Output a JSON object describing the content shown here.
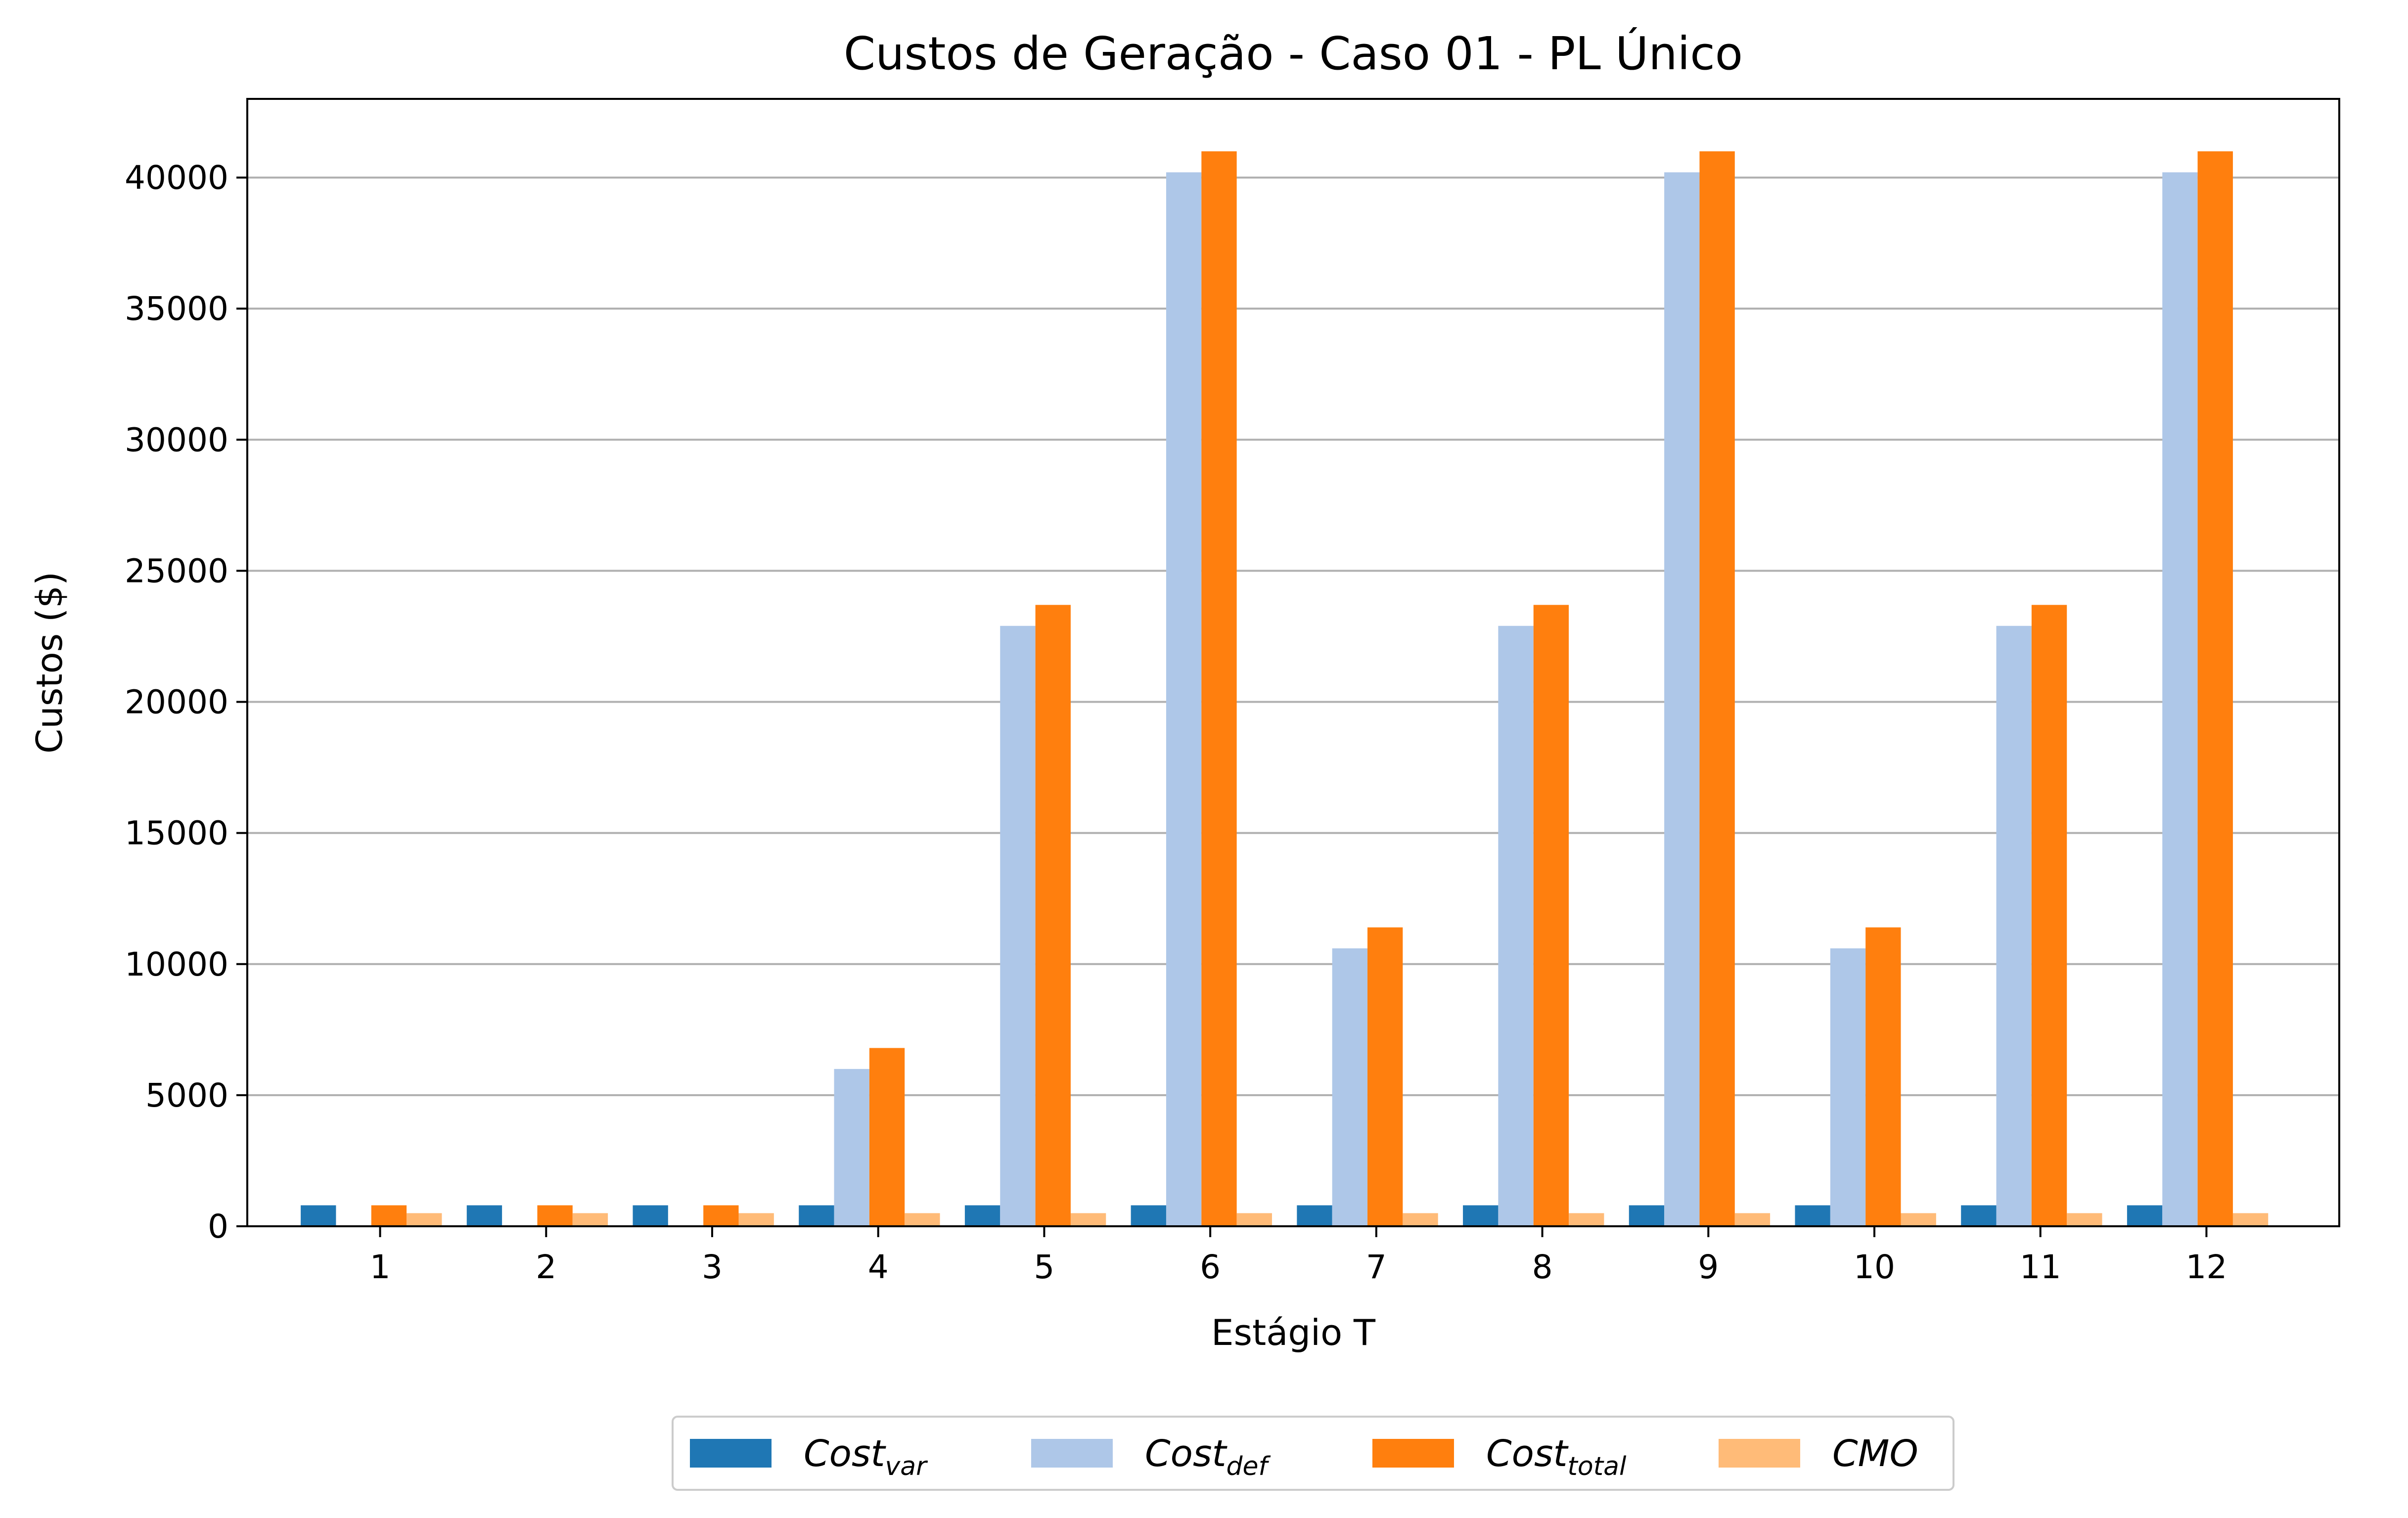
{
  "chart_data": {
    "type": "bar",
    "title": "Custos de Geração - Caso 01 - PL Único",
    "xlabel": "Estágio T",
    "ylabel": "Custos ($)",
    "categories": [
      "1",
      "2",
      "3",
      "4",
      "5",
      "6",
      "7",
      "8",
      "9",
      "10",
      "11",
      "12"
    ],
    "ylim": [
      0,
      43000
    ],
    "yticks": [
      0,
      5000,
      10000,
      15000,
      20000,
      25000,
      30000,
      35000,
      40000
    ],
    "grid": "y",
    "legend_position": "bottom-center",
    "series": [
      {
        "name": "Cost",
        "subscript": "var",
        "color": "#1f77b4",
        "values": [
          800,
          800,
          800,
          800,
          800,
          800,
          800,
          800,
          800,
          800,
          800,
          800
        ]
      },
      {
        "name": "Cost",
        "subscript": "def",
        "color": "#aec7e8",
        "values": [
          0,
          0,
          0,
          6000,
          22900,
          40200,
          10600,
          22900,
          40200,
          10600,
          22900,
          40200
        ]
      },
      {
        "name": "Cost",
        "subscript": "total",
        "color": "#ff7f0e",
        "values": [
          800,
          800,
          800,
          6800,
          23700,
          41000,
          11400,
          23700,
          41000,
          11400,
          23700,
          41000
        ]
      },
      {
        "name": "CMO",
        "subscript": "",
        "color": "#ffbb78",
        "values": [
          500,
          500,
          500,
          500,
          500,
          500,
          500,
          500,
          500,
          500,
          500,
          500
        ]
      }
    ]
  }
}
